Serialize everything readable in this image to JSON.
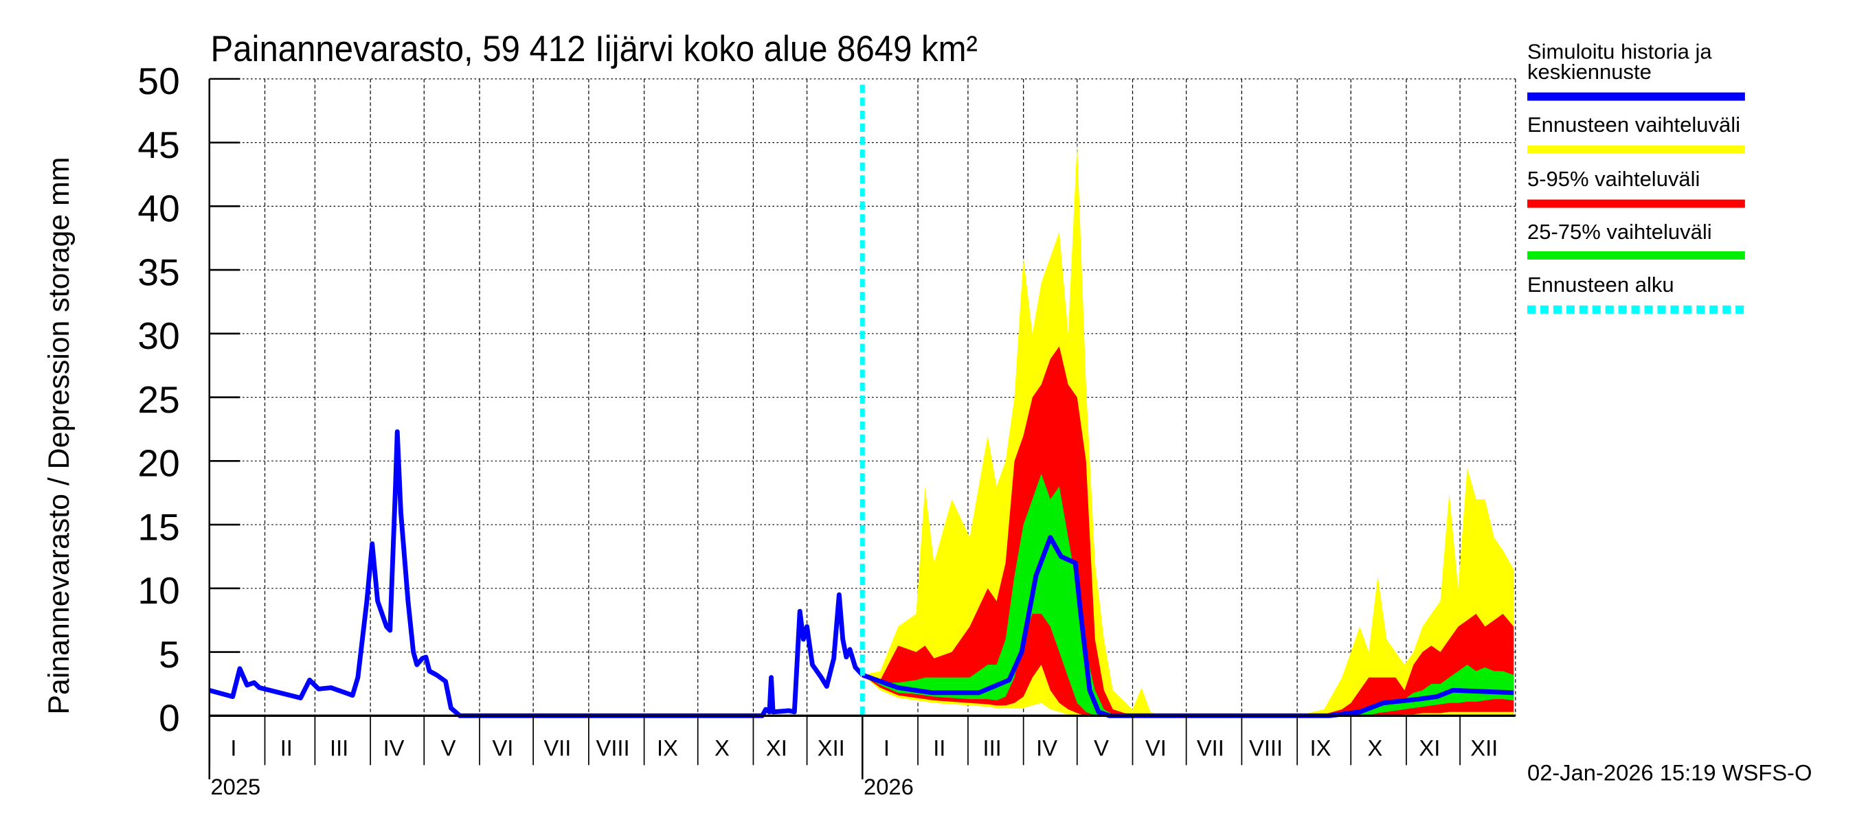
{
  "chart_data": {
    "type": "area",
    "title": "Painannevarasto, 59 412 Iijärvi koko alue 8649 km²",
    "ylabel": "Painannevarasto / Depression storage    mm",
    "ylim": [
      0,
      50
    ],
    "yticks": [
      "0",
      "5",
      "10",
      "15",
      "20",
      "25",
      "30",
      "35",
      "40",
      "45",
      "50"
    ],
    "xlim": [
      "2025-01-01",
      "2027-01-01"
    ],
    "month_labels": [
      "I",
      "II",
      "III",
      "IV",
      "V",
      "VI",
      "VII",
      "VIII",
      "IX",
      "X",
      "XI",
      "XII"
    ],
    "year_labels": [
      "2025",
      "2026"
    ],
    "grid": true,
    "legend_position": "right",
    "legend": [
      {
        "label": "Simuloitu historia ja keskiennuste",
        "color": "#0000ff",
        "style": "solid"
      },
      {
        "label": "Ennusteen vaihteluväli",
        "color": "#ffff00",
        "style": "solid"
      },
      {
        "label": "5-95% vaihteluväli",
        "color": "#ff0000",
        "style": "solid"
      },
      {
        "label": "25-75% vaihteluväli",
        "color": "#00ee00",
        "style": "solid"
      },
      {
        "label": "Ennusteen alku",
        "color": "#00ffff",
        "style": "dashed"
      }
    ],
    "forecast_start": "2026-01-01",
    "history": {
      "dates": [
        "2025-01-01",
        "2025-01-14",
        "2025-01-18",
        "2025-01-22",
        "2025-01-26",
        "2025-01-29",
        "2025-02-21",
        "2025-02-26",
        "2025-03-03",
        "2025-03-10",
        "2025-03-22",
        "2025-03-25",
        "2025-03-30",
        "2025-04-02",
        "2025-04-05",
        "2025-04-10",
        "2025-04-12",
        "2025-04-15",
        "2025-04-16",
        "2025-04-18",
        "2025-04-22",
        "2025-04-25",
        "2025-04-27",
        "2025-04-30",
        "2025-05-02",
        "2025-05-04",
        "2025-05-08",
        "2025-05-13",
        "2025-05-16",
        "2025-05-21",
        "2025-11-06",
        "2025-11-08",
        "2025-11-10",
        "2025-11-11",
        "2025-11-12",
        "2025-11-21",
        "2025-11-24",
        "2025-11-27",
        "2025-11-29",
        "2025-12-01",
        "2025-12-02",
        "2025-12-04",
        "2025-12-09",
        "2025-12-12",
        "2025-12-16",
        "2025-12-19",
        "2025-12-21",
        "2025-12-23",
        "2025-12-25",
        "2025-12-28",
        "2026-01-01"
      ],
      "values": [
        2.0,
        1.5,
        3.7,
        2.4,
        2.6,
        2.2,
        1.4,
        2.8,
        2.1,
        2.2,
        1.6,
        3.0,
        9.0,
        13.5,
        9.0,
        7.0,
        6.7,
        18.0,
        22.3,
        16.0,
        9.0,
        5.0,
        4.0,
        4.5,
        4.6,
        3.5,
        3.2,
        2.7,
        0.6,
        0.0,
        0.0,
        0.5,
        0.3,
        3.0,
        0.3,
        0.4,
        0.3,
        8.2,
        6.0,
        7.0,
        6.0,
        4.0,
        3.0,
        2.3,
        4.5,
        9.5,
        6.0,
        4.6,
        5.2,
        3.8,
        3.2
      ]
    },
    "median_forecast": {
      "dates": [
        "2026-01-01",
        "2026-01-21",
        "2026-02-09",
        "2026-03-07",
        "2026-03-24",
        "2026-03-31",
        "2026-04-08",
        "2026-04-16",
        "2026-04-22",
        "2026-04-30",
        "2026-05-03",
        "2026-05-08",
        "2026-05-13",
        "2026-05-19",
        "2026-09-19",
        "2026-10-06",
        "2026-10-19",
        "2026-11-08",
        "2026-11-18",
        "2026-11-27",
        "2026-12-31"
      ],
      "values": [
        3.2,
        2.2,
        1.8,
        1.8,
        2.8,
        5.0,
        11.0,
        14.0,
        12.5,
        12.0,
        8.0,
        2.0,
        0.3,
        0.0,
        0.0,
        0.3,
        1.0,
        1.3,
        1.5,
        2.0,
        1.8
      ]
    },
    "bands": {
      "dates": [
        "2026-01-01",
        "2026-01-11",
        "2026-01-21",
        "2026-01-31",
        "2026-02-05",
        "2026-02-10",
        "2026-02-20",
        "2026-03-02",
        "2026-03-12",
        "2026-03-17",
        "2026-03-22",
        "2026-03-27",
        "2026-04-01",
        "2026-04-06",
        "2026-04-11",
        "2026-04-16",
        "2026-04-21",
        "2026-04-26",
        "2026-05-01",
        "2026-05-06",
        "2026-05-11",
        "2026-05-16",
        "2026-05-21",
        "2026-06-01",
        "2026-06-06",
        "2026-06-11",
        "2026-06-16",
        "2026-09-01",
        "2026-09-16",
        "2026-09-26",
        "2026-10-01",
        "2026-10-06",
        "2026-10-11",
        "2026-10-16",
        "2026-10-21",
        "2026-10-26",
        "2026-10-31",
        "2026-11-05",
        "2026-11-10",
        "2026-11-15",
        "2026-11-20",
        "2026-11-25",
        "2026-11-30",
        "2026-12-05",
        "2026-12-10",
        "2026-12-15",
        "2026-12-20",
        "2026-12-25",
        "2026-12-31"
      ],
      "range_max": [
        3.2,
        3.5,
        7,
        8,
        18,
        12,
        17,
        14,
        22,
        18,
        20,
        25,
        36,
        30,
        34,
        36,
        38,
        30,
        45,
        26,
        12,
        6,
        2,
        0.5,
        2.2,
        0.3,
        0,
        0,
        0.5,
        3,
        5,
        7,
        5,
        11,
        6,
        5,
        4,
        5,
        7,
        8,
        9,
        17.5,
        10,
        19.5,
        17,
        17,
        14,
        13,
        11.5
      ],
      "range_min": [
        3.2,
        2.0,
        1.4,
        1.2,
        1.1,
        1.0,
        0.9,
        0.8,
        0.7,
        0.6,
        0.6,
        0.6,
        0.6,
        0.8,
        1.0,
        0.5,
        0.3,
        0.1,
        0,
        0,
        0,
        0,
        0,
        0,
        0,
        0,
        0,
        0,
        0,
        0,
        0,
        0,
        0,
        0,
        0,
        0,
        0,
        0,
        0,
        0,
        0,
        0,
        0,
        0,
        0,
        0,
        0,
        0,
        0
      ],
      "p95": [
        3.2,
        2.8,
        5.5,
        5,
        5.5,
        4.5,
        5,
        7,
        10,
        9,
        12,
        20,
        22,
        25,
        26,
        28,
        29,
        26,
        25,
        20,
        6,
        2,
        0.5,
        0,
        0,
        0,
        0,
        0,
        0.1,
        0.5,
        1,
        2,
        3,
        3,
        3,
        3,
        2,
        4,
        5,
        5.5,
        5,
        6,
        7,
        7.5,
        8,
        7,
        7.5,
        8,
        7
      ],
      "p5": [
        3.2,
        2.2,
        1.6,
        1.4,
        1.3,
        1.2,
        1.1,
        1.0,
        0.9,
        0.8,
        0.8,
        1.0,
        1.5,
        3,
        4,
        2,
        1,
        0.5,
        0.2,
        0,
        0,
        0,
        0,
        0,
        0,
        0,
        0,
        0,
        0,
        0,
        0,
        0,
        0,
        0,
        0,
        0,
        0.1,
        0.1,
        0.2,
        0.2,
        0.2,
        0.3,
        0.3,
        0.3,
        0.3,
        0.3,
        0.3,
        0.3,
        0.3
      ],
      "p75": [
        3.2,
        2.6,
        2.6,
        2.8,
        3,
        3,
        3,
        3,
        4,
        4,
        6,
        11,
        15,
        17,
        19,
        17,
        18,
        14,
        10,
        5,
        2,
        0.5,
        0.1,
        0,
        0,
        0,
        0,
        0,
        0,
        0.1,
        0.2,
        0.4,
        0.6,
        0.8,
        1,
        1.2,
        1.3,
        1.8,
        2,
        2.5,
        2.5,
        3,
        3.5,
        4,
        3.5,
        3.8,
        3.5,
        3.5,
        3.2
      ],
      "p25": [
        3.2,
        2.4,
        1.8,
        1.7,
        1.6,
        1.5,
        1.4,
        1.3,
        1.3,
        1.2,
        1.5,
        3,
        6,
        8,
        8,
        7,
        5,
        3,
        1,
        0.3,
        0,
        0,
        0,
        0,
        0,
        0,
        0,
        0,
        0,
        0,
        0,
        0,
        0,
        0.2,
        0.3,
        0.4,
        0.5,
        0.6,
        0.7,
        0.8,
        0.9,
        1.0,
        1.0,
        1.1,
        1.1,
        1.2,
        1.3,
        1.3,
        1.2
      ]
    }
  },
  "footer": {
    "timestamp": "02-Jan-2026 15:19 WSFS-O"
  }
}
